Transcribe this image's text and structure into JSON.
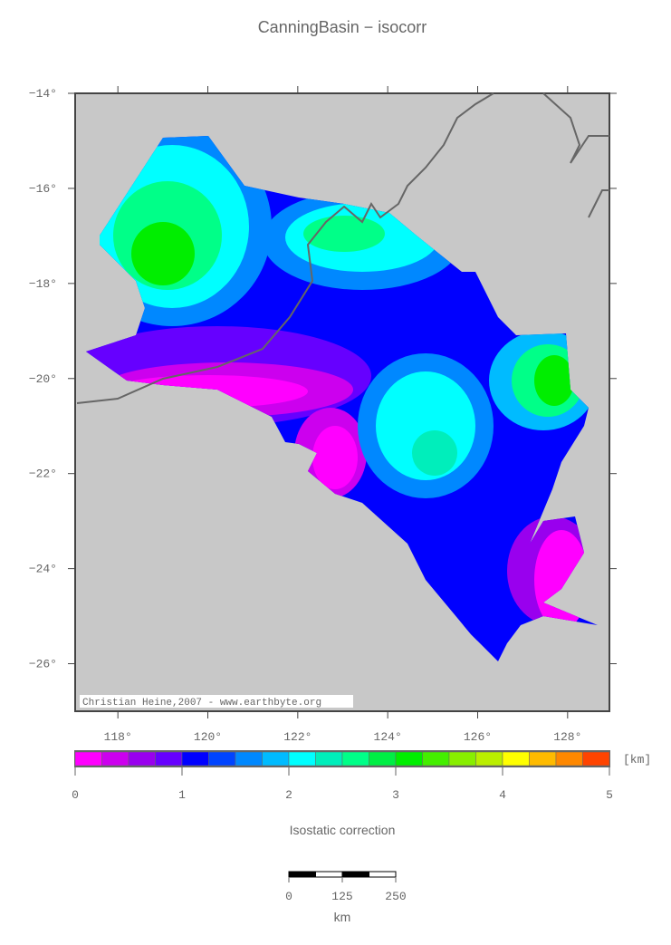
{
  "header": {
    "title": "CanningBasin − isocorr"
  },
  "map": {
    "credit": "Christian Heine,2007 - www.earthbyte.org",
    "xlim": [
      117.05,
      128.93
    ],
    "ylim": [
      -27,
      -14
    ],
    "xticks": [
      {
        "value": 118,
        "label": "118°"
      },
      {
        "value": 120,
        "label": "120°"
      },
      {
        "value": 122,
        "label": "122°"
      },
      {
        "value": 124,
        "label": "124°"
      },
      {
        "value": 126,
        "label": "126°"
      },
      {
        "value": 128,
        "label": "128°"
      }
    ],
    "yticks": [
      {
        "value": -14,
        "label": "−14°"
      },
      {
        "value": -16,
        "label": "−16°"
      },
      {
        "value": -18,
        "label": "−18°"
      },
      {
        "value": -20,
        "label": "−20°"
      },
      {
        "value": -22,
        "label": "−22°"
      },
      {
        "value": -24,
        "label": "−24°"
      },
      {
        "value": -26,
        "label": "−26°"
      }
    ]
  },
  "colorbar": {
    "label": "Isostatic correction",
    "unit": "[km]",
    "lim": [
      0,
      5
    ],
    "ticks": [
      0,
      1,
      2,
      3,
      4,
      5
    ],
    "colors": [
      "#ff00ff",
      "#cc00ee",
      "#9900ee",
      "#6600ff",
      "#0000ff",
      "#0044ff",
      "#0088ff",
      "#00bbff",
      "#00ffff",
      "#00eebb",
      "#00ff88",
      "#00ee44",
      "#00ee00",
      "#44ee00",
      "#88ee00",
      "#bbee00",
      "#ffff00",
      "#ffbb00",
      "#ff8800",
      "#ff4400"
    ]
  },
  "scale_bar": {
    "unit": "km",
    "lim": [
      0,
      250
    ],
    "ticks": [
      0,
      125,
      250
    ]
  }
}
